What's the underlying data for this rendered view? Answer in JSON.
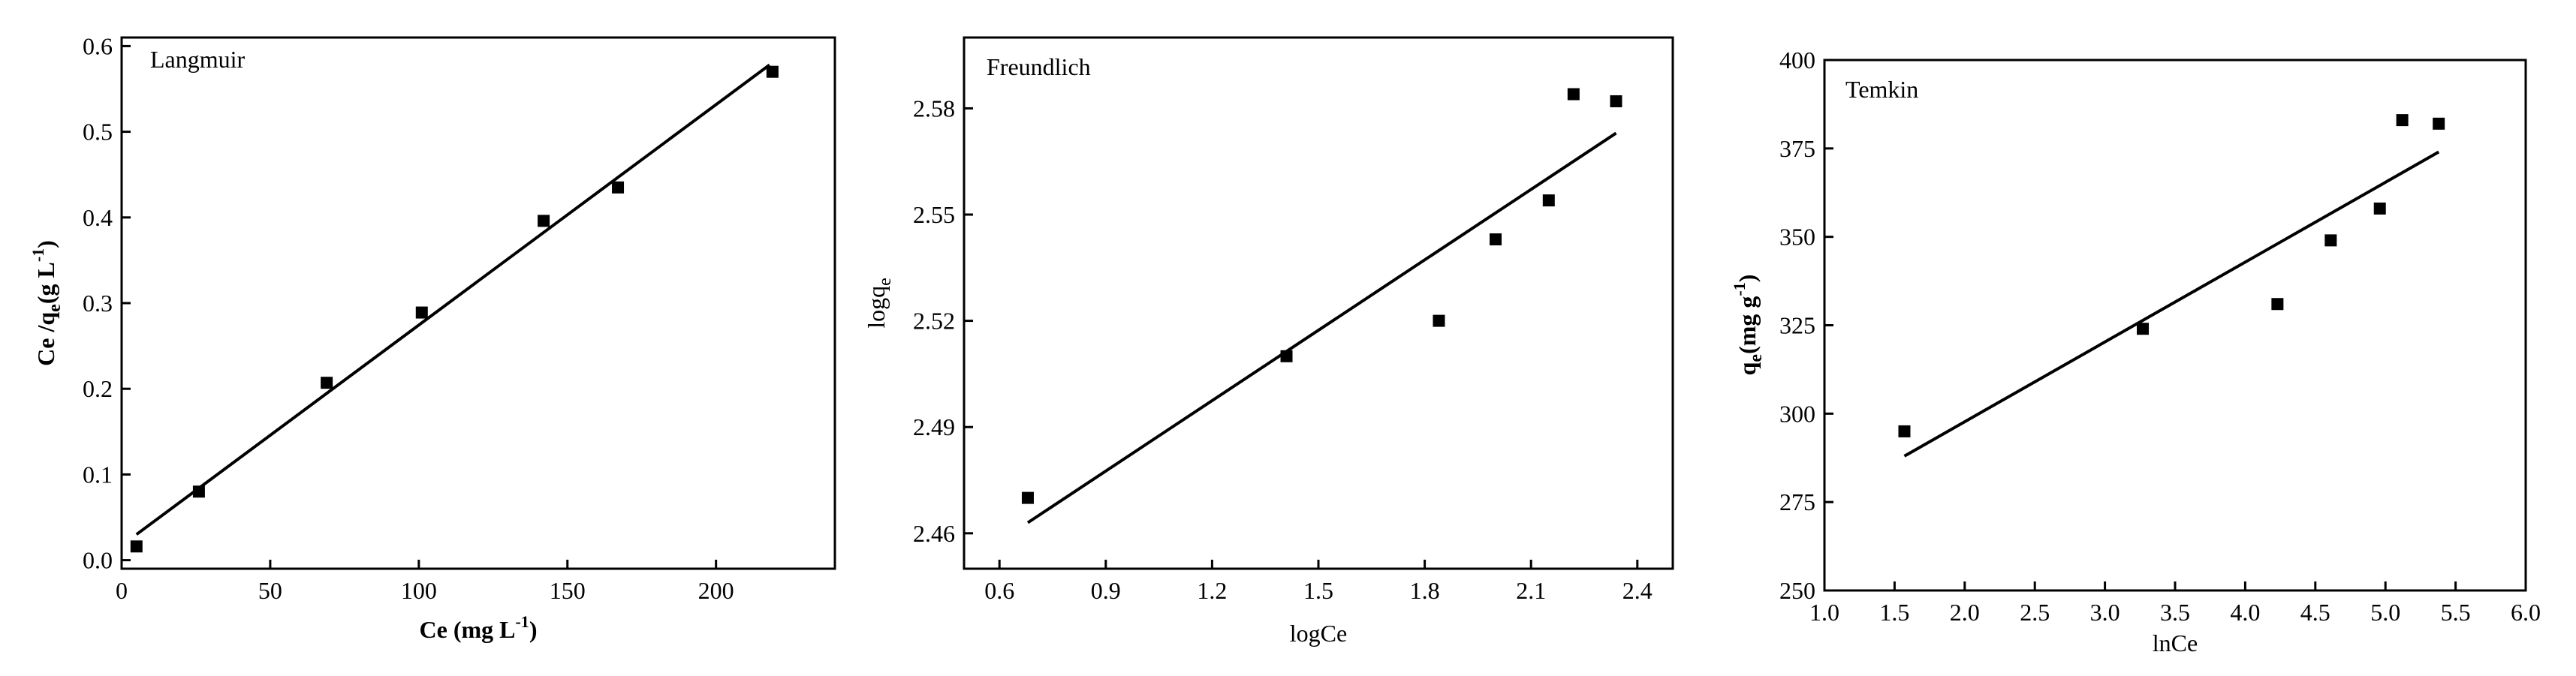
{
  "chart_data": [
    {
      "type": "scatter",
      "title": "Langmuir",
      "xlabel": "Ce (mg L-1)",
      "ylabel": "Ce /qe(g L-1)",
      "xlim": [
        0,
        240
      ],
      "ylim": [
        -0.01,
        0.61
      ],
      "xticks": [
        "0",
        "50",
        "100",
        "150",
        "200"
      ],
      "yticks": [
        "0.0",
        "0.1",
        "0.2",
        "0.3",
        "0.4",
        "0.5",
        "0.6"
      ],
      "points": [
        {
          "x": 5,
          "y": 0.016
        },
        {
          "x": 26,
          "y": 0.08
        },
        {
          "x": 69,
          "y": 0.207
        },
        {
          "x": 101,
          "y": 0.289
        },
        {
          "x": 142,
          "y": 0.396
        },
        {
          "x": 167,
          "y": 0.435
        },
        {
          "x": 219,
          "y": 0.57
        }
      ],
      "fit_line": [
        {
          "x": 5,
          "y": 0.03
        },
        {
          "x": 218,
          "y": 0.578
        }
      ]
    },
    {
      "type": "scatter",
      "title": "Freundlich",
      "xlabel": "logCe",
      "ylabel": "logqe",
      "xlim": [
        0.5,
        2.5
      ],
      "ylim": [
        2.45,
        2.6
      ],
      "xticks": [
        "0.6",
        "0.9",
        "1.2",
        "1.5",
        "1.8",
        "2.1",
        "2.4"
      ],
      "yticks": [
        "2.46",
        "2.49",
        "2.52",
        "2.55",
        "2.58"
      ],
      "points": [
        {
          "x": 0.68,
          "y": 2.47
        },
        {
          "x": 1.41,
          "y": 2.51
        },
        {
          "x": 1.84,
          "y": 2.52
        },
        {
          "x": 2.0,
          "y": 2.543
        },
        {
          "x": 2.15,
          "y": 2.554
        },
        {
          "x": 2.22,
          "y": 2.584
        },
        {
          "x": 2.34,
          "y": 2.582
        }
      ],
      "fit_line": [
        {
          "x": 0.68,
          "y": 2.463
        },
        {
          "x": 2.34,
          "y": 2.573
        }
      ]
    },
    {
      "type": "scatter",
      "title": "Temkin",
      "xlabel": "lnCe",
      "ylabel": "qe(mg g-1)",
      "xlim": [
        1.0,
        6.0
      ],
      "ylim": [
        250,
        400
      ],
      "xticks": [
        "1.0",
        "1.5",
        "2.0",
        "2.5",
        "3.0",
        "3.5",
        "4.0",
        "4.5",
        "5.0",
        "5.5",
        "6.0"
      ],
      "yticks": [
        "250",
        "275",
        "300",
        "325",
        "350",
        "375",
        "400"
      ],
      "points": [
        {
          "x": 1.57,
          "y": 295
        },
        {
          "x": 3.27,
          "y": 324
        },
        {
          "x": 4.23,
          "y": 331
        },
        {
          "x": 4.61,
          "y": 349
        },
        {
          "x": 4.96,
          "y": 358
        },
        {
          "x": 5.12,
          "y": 383
        },
        {
          "x": 5.38,
          "y": 382
        }
      ],
      "fit_line": [
        {
          "x": 1.57,
          "y": 288
        },
        {
          "x": 5.38,
          "y": 374
        }
      ]
    }
  ]
}
